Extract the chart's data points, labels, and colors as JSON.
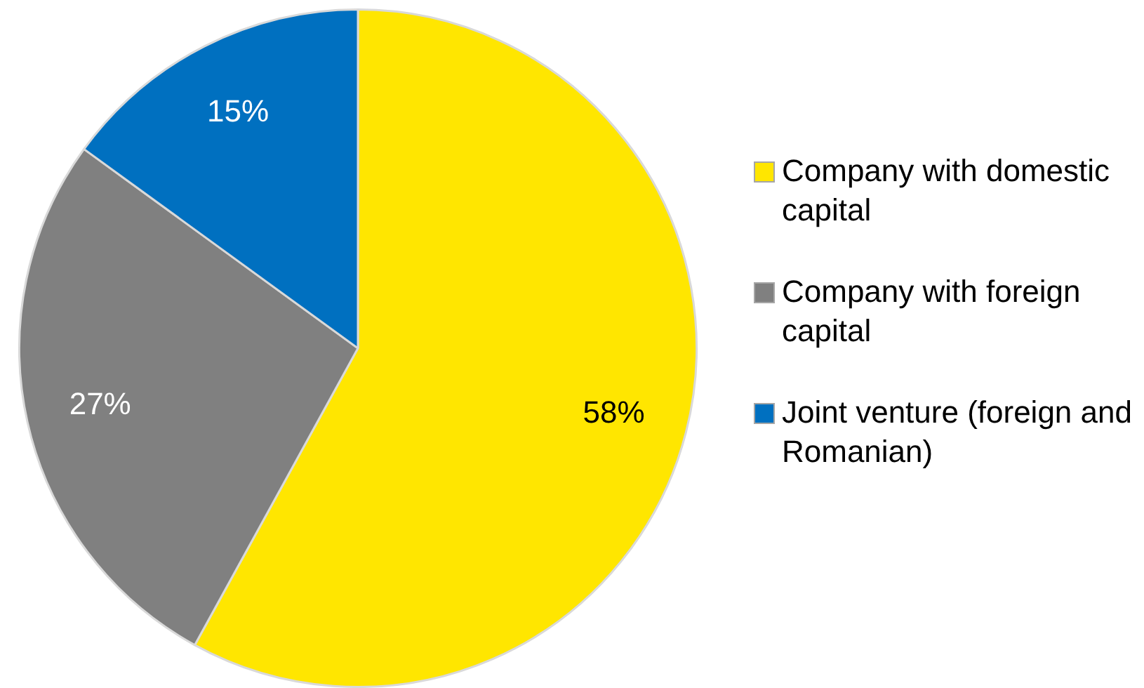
{
  "chart_data": {
    "type": "pie",
    "categories": [
      "Company with domestic capital",
      "Company with foreign capital",
      "Joint venture (foreign and Romanian)"
    ],
    "values": [
      58,
      27,
      15
    ],
    "colors": [
      "#ffe600",
      "#808080",
      "#0070c0"
    ],
    "value_labels": [
      "58%",
      "27%",
      "15%"
    ],
    "legend": "right"
  }
}
